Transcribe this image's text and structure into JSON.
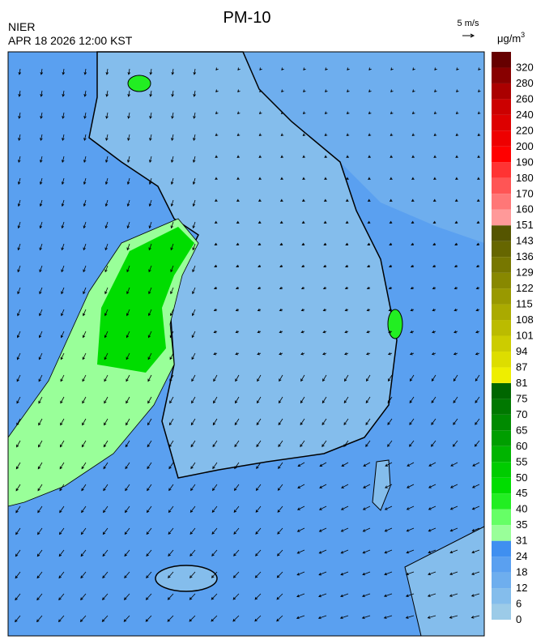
{
  "header": {
    "title": "PM-10",
    "source": "NIER",
    "time": "APR 18 2026 12:00 KST",
    "wind_scale": "5 m/s"
  },
  "legend": {
    "unit": "μg/m",
    "unit_power": "3",
    "labels": [
      0,
      6,
      12,
      18,
      24,
      31,
      35,
      40,
      45,
      50,
      55,
      60,
      65,
      70,
      75,
      81,
      87,
      94,
      101,
      108,
      115,
      122,
      129,
      136,
      143,
      151,
      160,
      170,
      180,
      190,
      200,
      220,
      240,
      260,
      280,
      320
    ],
    "colors": [
      "#9ccbe8",
      "#84bdec",
      "#6eaeee",
      "#5aa0f0",
      "#3f8ff0",
      "#99ff99",
      "#66ff66",
      "#22ee22",
      "#00dd00",
      "#00cc00",
      "#00b400",
      "#009e00",
      "#008a00",
      "#007800",
      "#006600",
      "#eeee00",
      "#dddd00",
      "#cccc00",
      "#bbbb00",
      "#aaaa00",
      "#999900",
      "#888800",
      "#777700",
      "#666600",
      "#555500",
      "#ff9999",
      "#ff7777",
      "#ff5555",
      "#ff3333",
      "#ff0000",
      "#ee0000",
      "#dd0000",
      "#cc0000",
      "#aa0000",
      "#880000",
      "#660000"
    ]
  }
}
